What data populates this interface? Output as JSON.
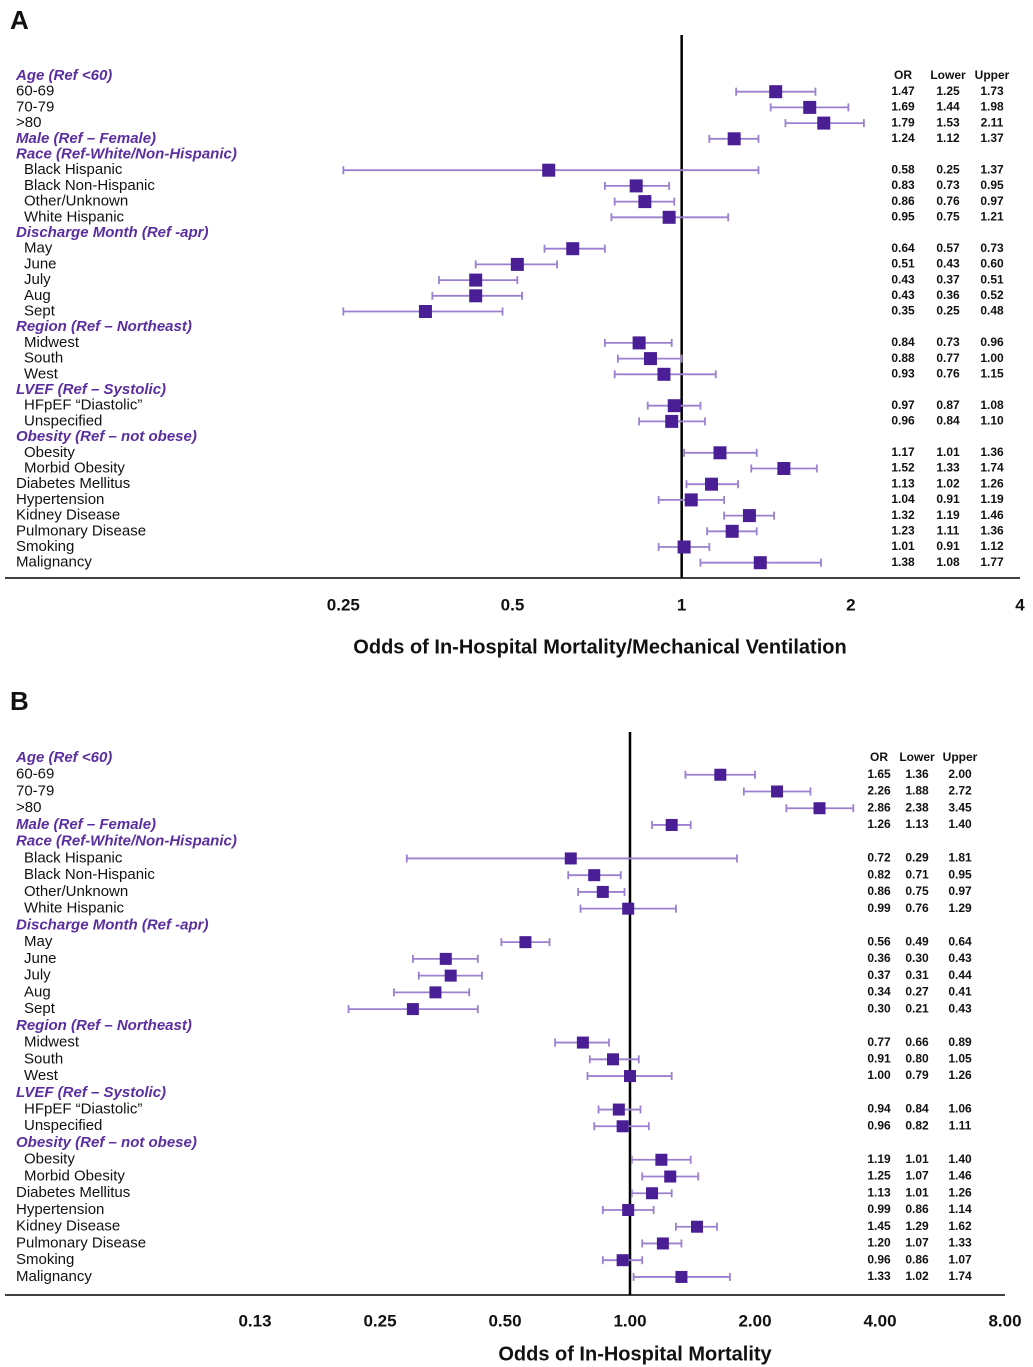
{
  "chart_data": [
    {
      "type": "forest",
      "panel": "A",
      "x_label": "Odds of In-Hospital Mortality/Mechanical Ventilation",
      "xscale": "log",
      "xlim": [
        0.0625,
        4
      ],
      "xticks": [
        0.25,
        0.5,
        1,
        2,
        4
      ],
      "reference_line": 1,
      "marker_color": "#4a1f96",
      "whisker_color": "#9b80cf",
      "group_color": "#5b2ea0",
      "categories": [
        "Age (Ref <60)",
        "60-69",
        "70-79",
        ">80",
        "Male  (Ref – Female)",
        "Race (Ref-White/Non-Hispanic)",
        "Black Hispanic",
        "Black Non-Hispanic",
        "Other/Unknown",
        "White Hispanic",
        "Discharge Month (Ref -apr)",
        "May",
        "June",
        "July",
        "Aug",
        "Sept",
        "Region (Ref – Northeast)",
        "Midwest",
        "South",
        "West",
        "LVEF (Ref – Systolic)",
        "HFpEF “Diastolic”",
        "Unspecified",
        "Obesity  (Ref – not obese)",
        "Obesity",
        "Morbid Obesity",
        "Diabetes Mellitus",
        "Hypertension",
        "Kidney Disease",
        "Pulmonary Disease",
        "Smoking",
        "Malignancy"
      ],
      "group_rows": [
        0,
        4,
        5,
        10,
        16,
        20,
        23
      ],
      "indented_rows": [
        6,
        7,
        8,
        9,
        11,
        12,
        13,
        14,
        15,
        17,
        18,
        19,
        21,
        22,
        24,
        25
      ],
      "series": [
        {
          "name": "OR",
          "values": [
            null,
            1.47,
            1.69,
            1.79,
            1.24,
            null,
            0.58,
            0.83,
            0.86,
            0.95,
            null,
            0.64,
            0.51,
            0.43,
            0.43,
            0.35,
            null,
            0.84,
            0.88,
            0.93,
            null,
            0.97,
            0.96,
            null,
            1.17,
            1.52,
            1.13,
            1.04,
            1.32,
            1.23,
            1.01,
            1.38
          ],
          "value_labels": [
            null,
            "1.47",
            "1.69",
            "1.79",
            "1.24",
            null,
            "0.58",
            "0.83",
            "0.86",
            "0.95",
            null,
            "0.64",
            "0.51",
            "0.43",
            "0.43",
            "0.35",
            null,
            "0.84",
            "0.88",
            "0.93",
            null,
            "0.97",
            "0.96",
            null,
            "1.17",
            "1.52",
            "1.13",
            "1.04",
            "1.32",
            "1.23",
            "1.01",
            "1.38"
          ]
        },
        {
          "name": "Lower",
          "values": [
            null,
            1.25,
            1.44,
            1.53,
            1.12,
            null,
            0.25,
            0.73,
            0.76,
            0.75,
            null,
            0.57,
            0.43,
            0.37,
            0.36,
            0.25,
            null,
            0.73,
            0.77,
            0.76,
            null,
            0.87,
            0.84,
            null,
            1.01,
            1.33,
            1.02,
            0.91,
            1.19,
            1.11,
            0.91,
            1.08
          ],
          "value_labels": [
            null,
            "1.25",
            "1.44",
            "1.53",
            "1.12",
            null,
            "0.25",
            "0.73",
            "0.76",
            "0.75",
            null,
            "0.57",
            "0.43",
            "0.37",
            "0.36",
            "0.25",
            null,
            "0.73",
            "0.77",
            "0.76",
            null,
            "0.87",
            "0.84",
            null,
            "1.01",
            "1.33",
            "1.02",
            "0.91",
            "1.19",
            "1.11",
            "0.91",
            "1.08"
          ]
        },
        {
          "name": "Upper",
          "values": [
            null,
            1.73,
            1.98,
            2.11,
            1.37,
            null,
            1.37,
            0.95,
            0.97,
            1.21,
            null,
            0.73,
            0.6,
            0.51,
            0.52,
            0.48,
            null,
            0.96,
            1.0,
            1.15,
            null,
            1.08,
            1.1,
            null,
            1.36,
            1.74,
            1.26,
            1.19,
            1.46,
            1.36,
            1.12,
            1.77
          ],
          "value_labels": [
            null,
            "1.73",
            "1.98",
            "2.11",
            "1.37",
            null,
            "1.37",
            "0.95",
            "0.97",
            "1.21",
            null,
            "0.73",
            "0.60",
            "0.51",
            "0.52",
            "0.48",
            null,
            "0.96",
            "1.00",
            "1.15",
            null,
            "1.08",
            "1.10",
            null,
            "1.36",
            "1.74",
            "1.26",
            "1.19",
            "1.46",
            "1.36",
            "1.12",
            "1.77"
          ]
        }
      ]
    },
    {
      "type": "forest",
      "panel": "B",
      "x_label": "Odds of In-Hospital Mortality",
      "xscale": "log",
      "xlim": [
        0.03125,
        8
      ],
      "xticks": [
        {
          "value": 0.125,
          "label": "0.13"
        },
        {
          "value": 0.25,
          "label": "0.25"
        },
        {
          "value": 0.5,
          "label": "0.50"
        },
        {
          "value": 1,
          "label": "1.00"
        },
        {
          "value": 2,
          "label": "2.00"
        },
        {
          "value": 4,
          "label": "4.00"
        },
        {
          "value": 8,
          "label": "8.00"
        }
      ],
      "reference_line": 1,
      "marker_color": "#4a1f96",
      "whisker_color": "#9b80cf",
      "group_color": "#5b2ea0",
      "categories": [
        "Age (Ref <60)",
        "60-69",
        "70-79",
        ">80",
        "Male  (Ref – Female)",
        "Race (Ref-White/Non-Hispanic)",
        "Black Hispanic",
        "Black Non-Hispanic",
        "Other/Unknown",
        "White Hispanic",
        "Discharge Month (Ref -apr)",
        "May",
        "June",
        "July",
        "Aug",
        "Sept",
        "Region (Ref – Northeast)",
        "Midwest",
        "South",
        "West",
        "LVEF (Ref – Systolic)",
        "HFpEF “Diastolic”",
        "Unspecified",
        "Obesity  (Ref – not obese)",
        "Obesity",
        "Morbid Obesity",
        "Diabetes Mellitus",
        "Hypertension",
        "Kidney Disease",
        "Pulmonary Disease",
        "Smoking",
        "Malignancy"
      ],
      "group_rows": [
        0,
        4,
        5,
        10,
        16,
        20,
        23
      ],
      "indented_rows": [
        6,
        7,
        8,
        9,
        11,
        12,
        13,
        14,
        15,
        17,
        18,
        19,
        21,
        22,
        24,
        25
      ],
      "series": [
        {
          "name": "OR",
          "values": [
            null,
            1.65,
            2.26,
            2.86,
            1.26,
            null,
            0.72,
            0.82,
            0.86,
            0.99,
            null,
            0.56,
            0.36,
            0.37,
            0.34,
            0.3,
            null,
            0.77,
            0.91,
            1.0,
            null,
            0.94,
            0.96,
            null,
            1.19,
            1.25,
            1.13,
            0.99,
            1.45,
            1.2,
            0.96,
            1.33
          ],
          "value_labels": [
            null,
            "1.65",
            "2.26",
            "2.86",
            "1.26",
            null,
            "0.72",
            "0.82",
            "0.86",
            "0.99",
            null,
            "0.56",
            "0.36",
            "0.37",
            "0.34",
            "0.30",
            null,
            "0.77",
            "0.91",
            "1.00",
            null,
            "0.94",
            "0.96",
            null,
            "1.19",
            "1.25",
            "1.13",
            "0.99",
            "1.45",
            "1.20",
            "0.96",
            "1.33"
          ]
        },
        {
          "name": "Lower",
          "values": [
            null,
            1.36,
            1.88,
            2.38,
            1.13,
            null,
            0.29,
            0.71,
            0.75,
            0.76,
            null,
            0.49,
            0.3,
            0.31,
            0.27,
            0.21,
            null,
            0.66,
            0.8,
            0.79,
            null,
            0.84,
            0.82,
            null,
            1.01,
            1.07,
            1.01,
            0.86,
            1.29,
            1.07,
            0.86,
            1.02
          ],
          "value_labels": [
            null,
            "1.36",
            "1.88",
            "2.38",
            "1.13",
            null,
            "0.29",
            "0.71",
            "0.75",
            "0.76",
            null,
            "0.49",
            "0.30",
            "0.31",
            "0.27",
            "0.21",
            null,
            "0.66",
            "0.80",
            "0.79",
            null,
            "0.84",
            "0.82",
            null,
            "1.01",
            "1.07",
            "1.01",
            "0.86",
            "1.29",
            "1.07",
            "0.86",
            "1.02"
          ]
        },
        {
          "name": "Upper",
          "values": [
            null,
            2.0,
            2.72,
            3.45,
            1.4,
            null,
            1.81,
            0.95,
            0.97,
            1.29,
            null,
            0.64,
            0.43,
            0.44,
            0.41,
            0.43,
            null,
            0.89,
            1.05,
            1.26,
            null,
            1.06,
            1.11,
            null,
            1.4,
            1.46,
            1.26,
            1.14,
            1.62,
            1.33,
            1.07,
            1.74
          ],
          "value_labels": [
            null,
            "2.00",
            "2.72",
            "3.45",
            "1.40",
            null,
            "1.81",
            "0.95",
            "0.97",
            "1.29",
            null,
            "0.64",
            "0.43",
            "0.44",
            "0.41",
            "0.43",
            null,
            "0.89",
            "1.05",
            "1.26",
            null,
            "1.06",
            "1.11",
            null,
            "1.40",
            "1.46",
            "1.26",
            "1.14",
            "1.62",
            "1.33",
            "1.07",
            "1.74"
          ]
        }
      ]
    }
  ]
}
